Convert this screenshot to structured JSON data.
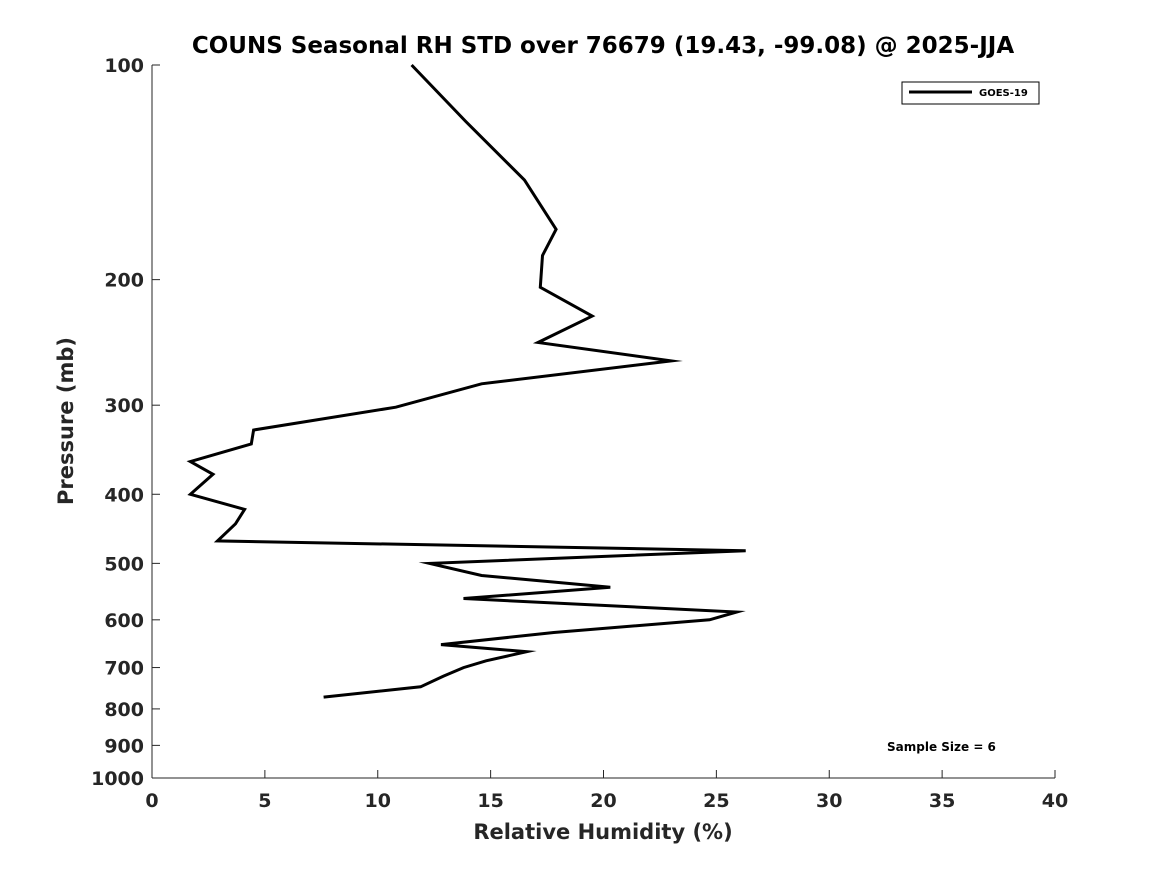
{
  "chart_data": {
    "type": "line",
    "title": "COUNS Seasonal RH STD over 76679 (19.43, -99.08) @ 2025-JJA",
    "xlabel": "Relative Humidity (%)",
    "ylabel": "Pressure (mb)",
    "xlim": [
      0,
      40
    ],
    "ylim": [
      100,
      1000
    ],
    "y_scale": "log",
    "y_reversed": true,
    "x_ticks": [
      0,
      5,
      10,
      15,
      20,
      25,
      30,
      35,
      40
    ],
    "y_ticks": [
      100,
      200,
      300,
      400,
      500,
      600,
      700,
      800,
      900,
      1000
    ],
    "grid": false,
    "legend_position": "top-right",
    "series": [
      {
        "name": "GOES-19",
        "color": "#000000",
        "x": [
          11.5,
          13.9,
          16.5,
          17.9,
          17.3,
          17.2,
          19.5,
          17.1,
          23.0,
          14.6,
          10.8,
          4.5,
          4.4,
          1.7,
          2.7,
          1.7,
          4.1,
          3.7,
          2.9,
          26.3,
          12.3,
          14.6,
          20.3,
          13.8,
          25.9,
          24.7,
          17.8,
          12.8,
          16.6,
          14.8,
          13.8,
          12.9,
          11.9,
          7.6
        ],
        "y": [
          100,
          120,
          145,
          170,
          185,
          205,
          225,
          245,
          260,
          280,
          302,
          325,
          340,
          360,
          375,
          400,
          420,
          440,
          465,
          480,
          500,
          520,
          540,
          560,
          585,
          600,
          625,
          650,
          665,
          685,
          700,
          720,
          745,
          770
        ]
      }
    ],
    "annotations": [
      {
        "text": "Sample Size = 6",
        "position": "bottom-right"
      }
    ]
  }
}
